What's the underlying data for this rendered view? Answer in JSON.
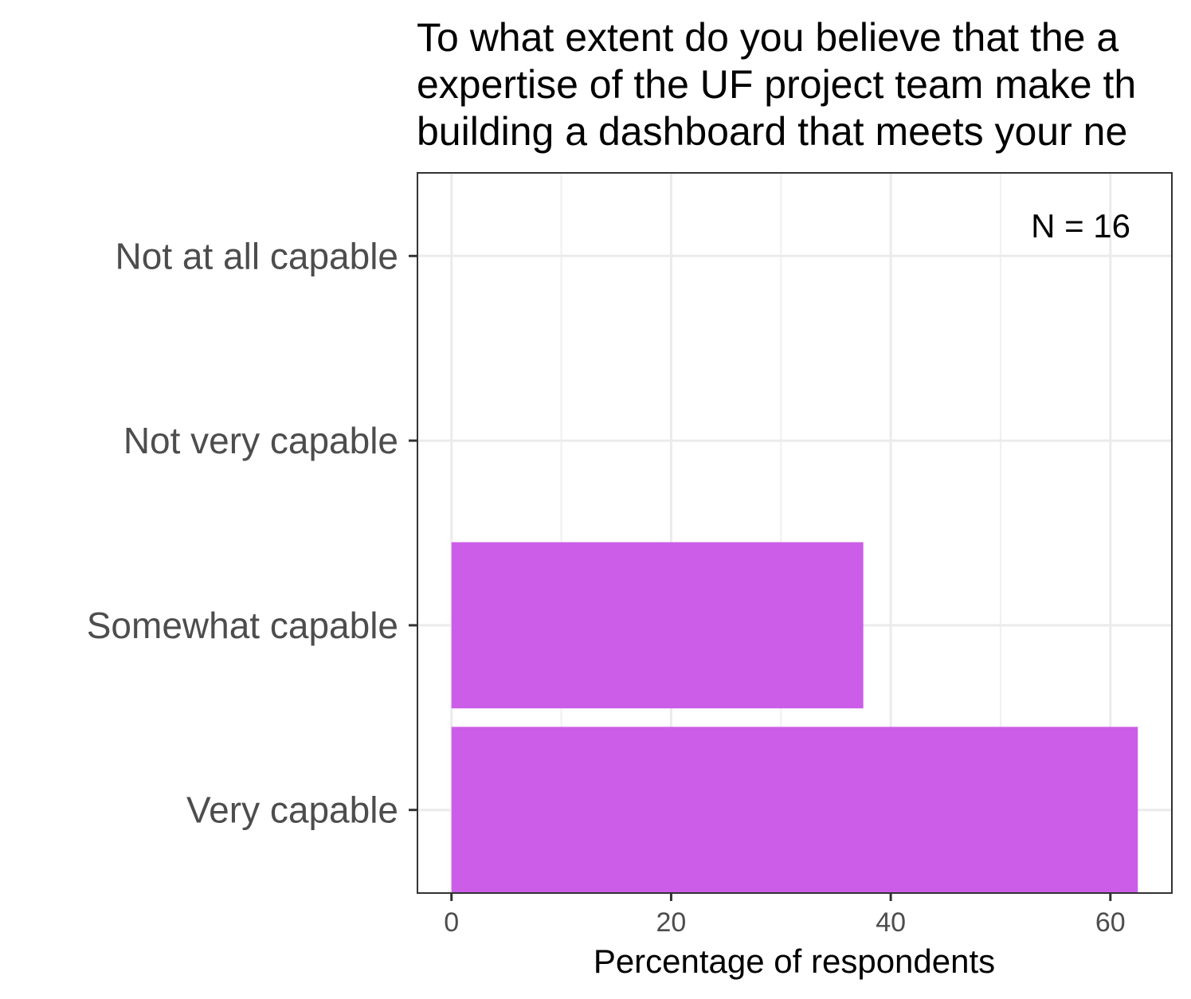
{
  "chart_data": {
    "type": "bar",
    "orientation": "horizontal",
    "title_lines": [
      "To what extent do you believe that the a",
      "expertise of the UF project team make th",
      "building a dashboard that meets your ne"
    ],
    "categories": [
      "Not at all capable",
      "Not very capable",
      "Somewhat capable",
      "Very capable"
    ],
    "values": [
      0,
      0,
      37.5,
      62.5
    ],
    "xlabel": "Percentage of respondents",
    "ylabel": "",
    "xlim": [
      -3.1,
      65.6
    ],
    "xticks": [
      0,
      20,
      40,
      60
    ],
    "annotation": "N = 16",
    "grid": true,
    "bar_color": "#cc5de8"
  }
}
